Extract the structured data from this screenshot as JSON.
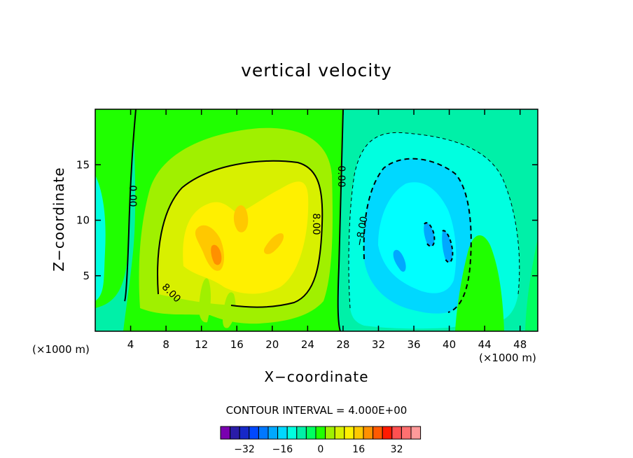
{
  "chart_data": {
    "type": "heatmap",
    "title": "vertical velocity",
    "xlabel": "X−coordinate",
    "ylabel": "Z−coordinate",
    "x_unit": "(×1000 m)",
    "y_unit": "(×1000 m)",
    "xlim": [
      0,
      50
    ],
    "ylim": [
      0,
      20
    ],
    "x_ticks": [
      "4",
      "8",
      "12",
      "16",
      "20",
      "24",
      "28",
      "32",
      "36",
      "40",
      "44",
      "48"
    ],
    "y_ticks": [
      "5",
      "10",
      "15"
    ],
    "contour_interval_text": "CONTOUR INTERVAL = 4.000E+00",
    "contour_labels": [
      "0.00",
      "0.00",
      "8.00",
      "8.00",
      "−8.00"
    ],
    "colorbar": {
      "colors": [
        "#7a00b0",
        "#2a1ca8",
        "#1628c8",
        "#0048ff",
        "#0078ff",
        "#00a8ff",
        "#00d8ff",
        "#00ffe0",
        "#00f0a8",
        "#00ff60",
        "#20ff00",
        "#a0f000",
        "#d8f000",
        "#fff000",
        "#ffc800",
        "#ff9000",
        "#ff5a00",
        "#ff1a00",
        "#ff5050",
        "#ff7070",
        "#ff9a9a"
      ],
      "tick_labels": [
        "−32",
        "−16",
        "0",
        "16",
        "32"
      ]
    },
    "features": [
      {
        "kind": "updraft",
        "x_center": 18,
        "z_center": 9,
        "max_value": 24
      },
      {
        "kind": "downdraft",
        "x_center": 37,
        "z_center": 8,
        "min_value": -20
      }
    ]
  }
}
